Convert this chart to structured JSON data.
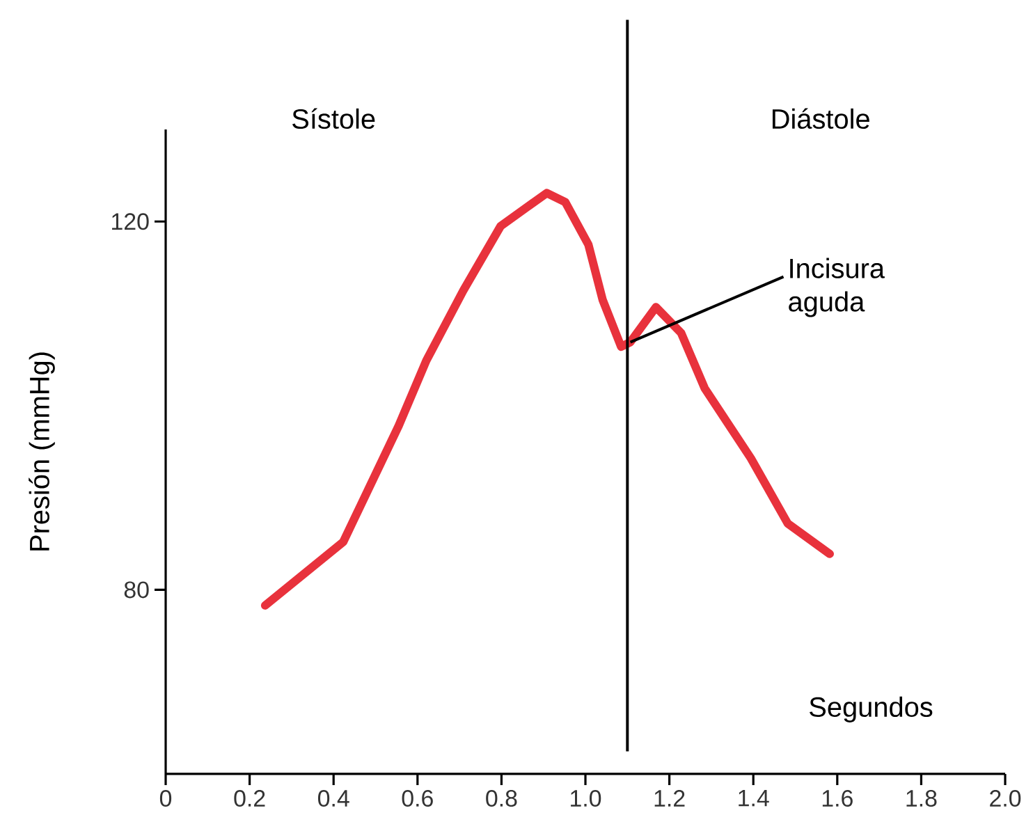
{
  "chart_data": {
    "type": "line",
    "xlabel": "Segundos",
    "ylabel": "Presión (mmHg)",
    "x": [
      0.237,
      0.423,
      0.555,
      0.621,
      0.709,
      0.798,
      0.908,
      0.952,
      1.007,
      1.041,
      1.085,
      1.107,
      1.168,
      1.228,
      1.284,
      1.394,
      1.482,
      1.582
    ],
    "series": [
      {
        "color": "#e8323c",
        "values": [
          78.3,
          85.2,
          97.8,
          104.9,
          112.5,
          119.5,
          123.1,
          122.1,
          117.5,
          111.5,
          106.4,
          106.9,
          110.7,
          107.9,
          101.9,
          94.3,
          87.2,
          83.9
        ]
      }
    ],
    "xlim": [
      0,
      2.0
    ],
    "ylim": [
      60,
      130
    ],
    "xticks": [
      0,
      0.2,
      0.4,
      0.6,
      0.8,
      {
        "value": 1,
        "label": "1.0"
      },
      1.2,
      1.4,
      1.6,
      1.8,
      {
        "value": 2,
        "label": "2.0"
      }
    ],
    "yticks": [
      80,
      120
    ],
    "ref_lines": [
      {
        "axis": "x",
        "value": 1.1,
        "color": "#000000"
      }
    ],
    "annotations": [
      "Sístole",
      "Diástole",
      {
        "text": "Incisura aguda",
        "x": 1.107,
        "y": 106.9
      }
    ],
    "grid": false,
    "marker": "none",
    "line_style": "solid"
  }
}
